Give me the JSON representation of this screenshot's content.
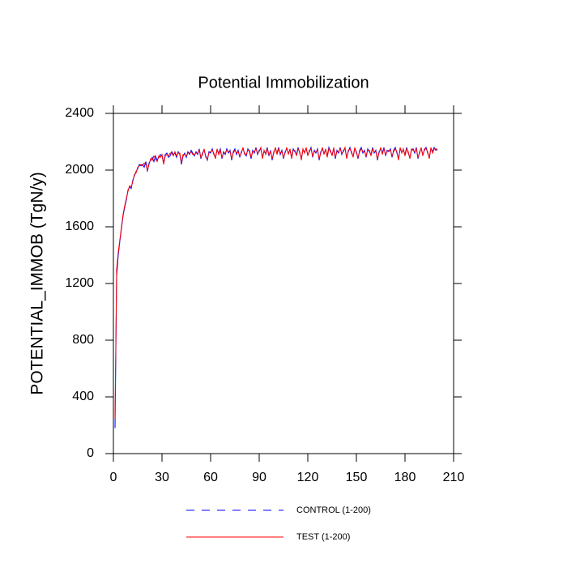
{
  "chart_data": {
    "type": "line",
    "title": "Potential Immobilization",
    "y_label": "POTENTIAL_IMMOB  (TgN/y)",
    "x": [
      1,
      2,
      3,
      4,
      5,
      6,
      7,
      8,
      9,
      10,
      11,
      12,
      13,
      14,
      15,
      16,
      17,
      18,
      19,
      20,
      21,
      22,
      23,
      24,
      25,
      26,
      27,
      28,
      29,
      30,
      31,
      32,
      33,
      34,
      35,
      36,
      37,
      38,
      39,
      40,
      41,
      42,
      43,
      44,
      45,
      46,
      47,
      48,
      49,
      50,
      51,
      52,
      53,
      54,
      55,
      56,
      57,
      58,
      59,
      60,
      61,
      62,
      63,
      64,
      65,
      66,
      67,
      68,
      69,
      70,
      71,
      72,
      73,
      74,
      75,
      76,
      77,
      78,
      79,
      80,
      81,
      82,
      83,
      84,
      85,
      86,
      87,
      88,
      89,
      90,
      91,
      92,
      93,
      94,
      95,
      96,
      97,
      98,
      99,
      100,
      101,
      102,
      103,
      104,
      105,
      106,
      107,
      108,
      109,
      110,
      111,
      112,
      113,
      114,
      115,
      116,
      117,
      118,
      119,
      120,
      121,
      122,
      123,
      124,
      125,
      126,
      127,
      128,
      129,
      130,
      131,
      132,
      133,
      134,
      135,
      136,
      137,
      138,
      139,
      140,
      141,
      142,
      143,
      144,
      145,
      146,
      147,
      148,
      149,
      150,
      151,
      152,
      153,
      154,
      155,
      156,
      157,
      158,
      159,
      160,
      161,
      162,
      163,
      164,
      165,
      166,
      167,
      168,
      169,
      170,
      171,
      172,
      173,
      174,
      175,
      176,
      177,
      178,
      179,
      180,
      181,
      182,
      183,
      184,
      185,
      186,
      187,
      188,
      189,
      190,
      191,
      192,
      193,
      194,
      195,
      196,
      197,
      198,
      199,
      200
    ],
    "series": [
      {
        "name": "CONTROL (1-200)",
        "color": "#0000ff",
        "line_style": "dashed",
        "values": [
          180,
          1250,
          1400,
          1500,
          1590,
          1680,
          1740,
          1790,
          1860,
          1880,
          1870,
          1930,
          1960,
          1990,
          2010,
          2040,
          2030,
          2040,
          2020,
          2060,
          1990,
          2050,
          2070,
          2090,
          2060,
          2100,
          2070,
          2090,
          2110,
          2100,
          2050,
          2110,
          2120,
          2090,
          2100,
          2130,
          2110,
          2120,
          2090,
          2130,
          2110,
          2040,
          2100,
          2120,
          2090,
          2130,
          2110,
          2140,
          2120,
          2100,
          2130,
          2110,
          2150,
          2080,
          2120,
          2140,
          2100,
          2070,
          2130,
          2120,
          2150,
          2110,
          2090,
          2140,
          2120,
          2150,
          2080,
          2130,
          2110,
          2150,
          2120,
          2140,
          2070,
          2130,
          2150,
          2110,
          2140,
          2090,
          2130,
          2150,
          2120,
          2100,
          2150,
          2130,
          2080,
          2140,
          2120,
          2160,
          2110,
          2140,
          2150,
          2090,
          2130,
          2120,
          2160,
          2100,
          2140,
          2070,
          2130,
          2150,
          2120,
          2160,
          2110,
          2140,
          2080,
          2130,
          2150,
          2120,
          2140,
          2090,
          2150,
          2130,
          2110,
          2160,
          2120,
          2080,
          2140,
          2130,
          2150,
          2110,
          2130,
          2160,
          2090,
          2140,
          2120,
          2150,
          2070,
          2130,
          2150,
          2120,
          2140,
          2100,
          2160,
          2130,
          2110,
          2150,
          2080,
          2140,
          2120,
          2160,
          2110,
          2140,
          2150,
          2090,
          2130,
          2160,
          2120,
          2100,
          2150,
          2130,
          2080,
          2140,
          2160,
          2120,
          2140,
          2090,
          2150,
          2130,
          2110,
          2160,
          2120,
          2140,
          2070,
          2130,
          2150,
          2120,
          2160,
          2100,
          2140,
          2130,
          2150,
          2090,
          2140,
          2160,
          2120,
          2080,
          2150,
          2130,
          2140,
          2110,
          2160,
          2120,
          2090,
          2140,
          2150,
          2120,
          2160,
          2080,
          2130,
          2150,
          2110,
          2140,
          2160,
          2120,
          2090,
          2150,
          2130,
          2160,
          2140,
          2150
        ]
      },
      {
        "name": "TEST (1-200)",
        "color": "#ff0000",
        "line_style": "solid",
        "values": [
          250,
          1300,
          1420,
          1510,
          1600,
          1690,
          1750,
          1800,
          1850,
          1890,
          1880,
          1920,
          1970,
          1980,
          2020,
          2030,
          2040,
          2030,
          2050,
          2040,
          2000,
          2040,
          2080,
          2070,
          2100,
          2080,
          2060,
          2100,
          2090,
          2110,
          2040,
          2100,
          2110,
          2100,
          2120,
          2120,
          2100,
          2130,
          2100,
          2120,
          2120,
          2050,
          2110,
          2110,
          2100,
          2120,
          2120,
          2130,
          2110,
          2110,
          2120,
          2120,
          2140,
          2090,
          2110,
          2150,
          2090,
          2080,
          2120,
          2130,
          2140,
          2120,
          2080,
          2150,
          2110,
          2140,
          2090,
          2120,
          2120,
          2140,
          2130,
          2130,
          2080,
          2120,
          2140,
          2120,
          2130,
          2100,
          2120,
          2160,
          2110,
          2110,
          2140,
          2140,
          2090,
          2130,
          2130,
          2150,
          2120,
          2130,
          2160,
          2080,
          2140,
          2110,
          2150,
          2110,
          2130,
          2080,
          2120,
          2160,
          2110,
          2150,
          2120,
          2130,
          2090,
          2120,
          2160,
          2110,
          2150,
          2080,
          2140,
          2140,
          2100,
          2150,
          2130,
          2070,
          2150,
          2120,
          2160,
          2100,
          2140,
          2150,
          2100,
          2130,
          2130,
          2140,
          2080,
          2120,
          2160,
          2110,
          2150,
          2090,
          2150,
          2140,
          2100,
          2160,
          2090,
          2130,
          2130,
          2150,
          2120,
          2130,
          2160,
          2080,
          2140,
          2150,
          2130,
          2090,
          2160,
          2120,
          2090,
          2130,
          2150,
          2130,
          2130,
          2100,
          2140,
          2140,
          2100,
          2150,
          2130,
          2130,
          2080,
          2120,
          2160,
          2110,
          2150,
          2110,
          2130,
          2140,
          2140,
          2100,
          2130,
          2150,
          2130,
          2070,
          2160,
          2120,
          2150,
          2100,
          2150,
          2130,
          2080,
          2150,
          2140,
          2130,
          2150,
          2090,
          2120,
          2160,
          2100,
          2150,
          2150,
          2130,
          2080,
          2160,
          2120,
          2150,
          2150,
          2140
        ]
      }
    ],
    "xlim": [
      0,
      210
    ],
    "xticks": [
      0,
      30,
      60,
      90,
      120,
      150,
      180,
      210
    ],
    "ylim": [
      0,
      2400
    ],
    "yticks": [
      0,
      400,
      800,
      1200,
      1600,
      2000,
      2400
    ],
    "legend": "bottom"
  }
}
